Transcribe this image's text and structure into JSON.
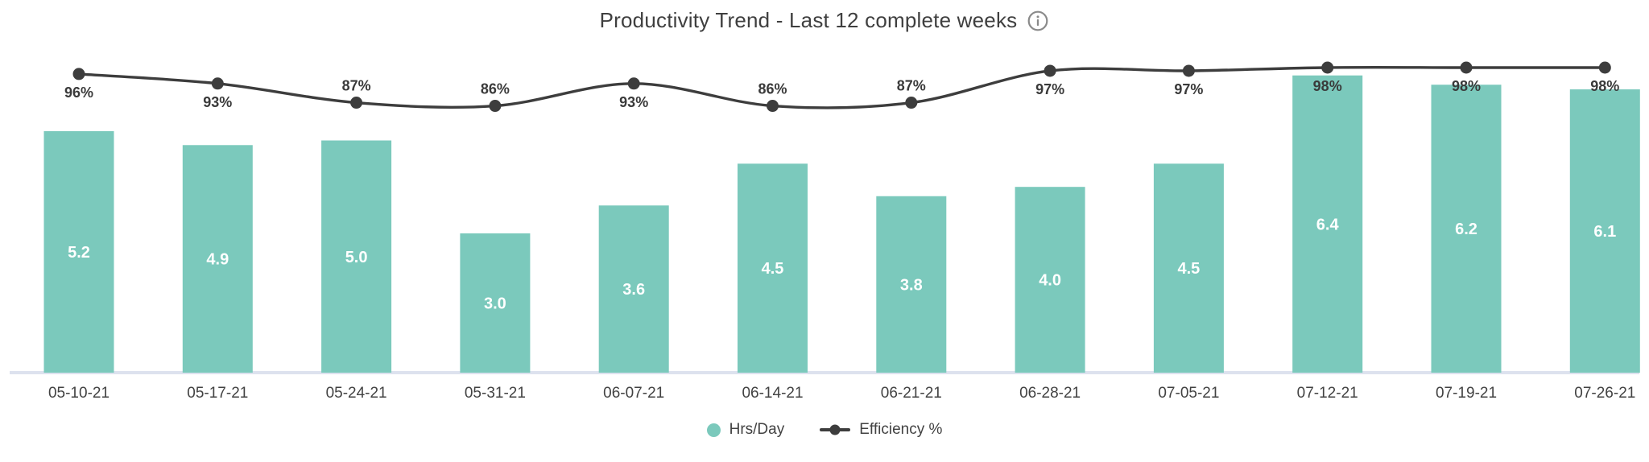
{
  "header": {
    "title": "Productivity Trend - Last 12 complete weeks",
    "info_icon": "info-circle"
  },
  "legend": {
    "position": "bottom-center",
    "items": [
      {
        "label": "Hrs/Day",
        "marker": "circle",
        "color": "#7bc9bc"
      },
      {
        "label": "Efficiency %",
        "marker": "line-dot",
        "color": "#3d3d3d"
      }
    ]
  },
  "colors": {
    "background": "#ffffff",
    "bar": "#7bc9bc",
    "bar_value_label": "#ffffff",
    "line": "#3d3d3d",
    "line_label": "#3a3a3a",
    "axis_text": "#424242",
    "axis_baseline": "#dde2ee",
    "title_text": "#3f3f3f",
    "info_icon": "#8a8a8a"
  },
  "chart_data": {
    "type": "combo-bar-line",
    "title": "Productivity Trend - Last 12 complete weeks",
    "categories": [
      "05-10-21",
      "05-17-21",
      "05-24-21",
      "05-31-21",
      "06-07-21",
      "06-14-21",
      "06-21-21",
      "06-28-21",
      "07-05-21",
      "07-12-21",
      "07-19-21",
      "07-26-21"
    ],
    "series": [
      {
        "name": "Hrs/Day",
        "type": "bar",
        "color": "#7bc9bc",
        "values": [
          5.2,
          4.9,
          5.0,
          3.0,
          3.6,
          4.5,
          3.8,
          4.0,
          4.5,
          6.4,
          6.2,
          6.1
        ],
        "value_label_format": "0.0",
        "value_label_placement": "inside-center"
      },
      {
        "name": "Efficiency %",
        "type": "line",
        "color": "#3d3d3d",
        "unit": "%",
        "values": [
          96,
          93,
          87,
          86,
          93,
          86,
          87,
          97,
          97,
          98,
          98,
          98
        ],
        "label_side": [
          "below",
          "below",
          "above",
          "above",
          "below",
          "above",
          "above",
          "below",
          "below",
          "below",
          "below",
          "below"
        ],
        "smooth": true,
        "point_markers": true
      }
    ],
    "xlabel": "",
    "ylabel": "",
    "grid": false,
    "y_axis_visible": false,
    "bar_ylim": [
      0,
      7.2
    ],
    "line_visible_range": [
      86,
      98
    ],
    "legend_position": "bottom-center"
  }
}
